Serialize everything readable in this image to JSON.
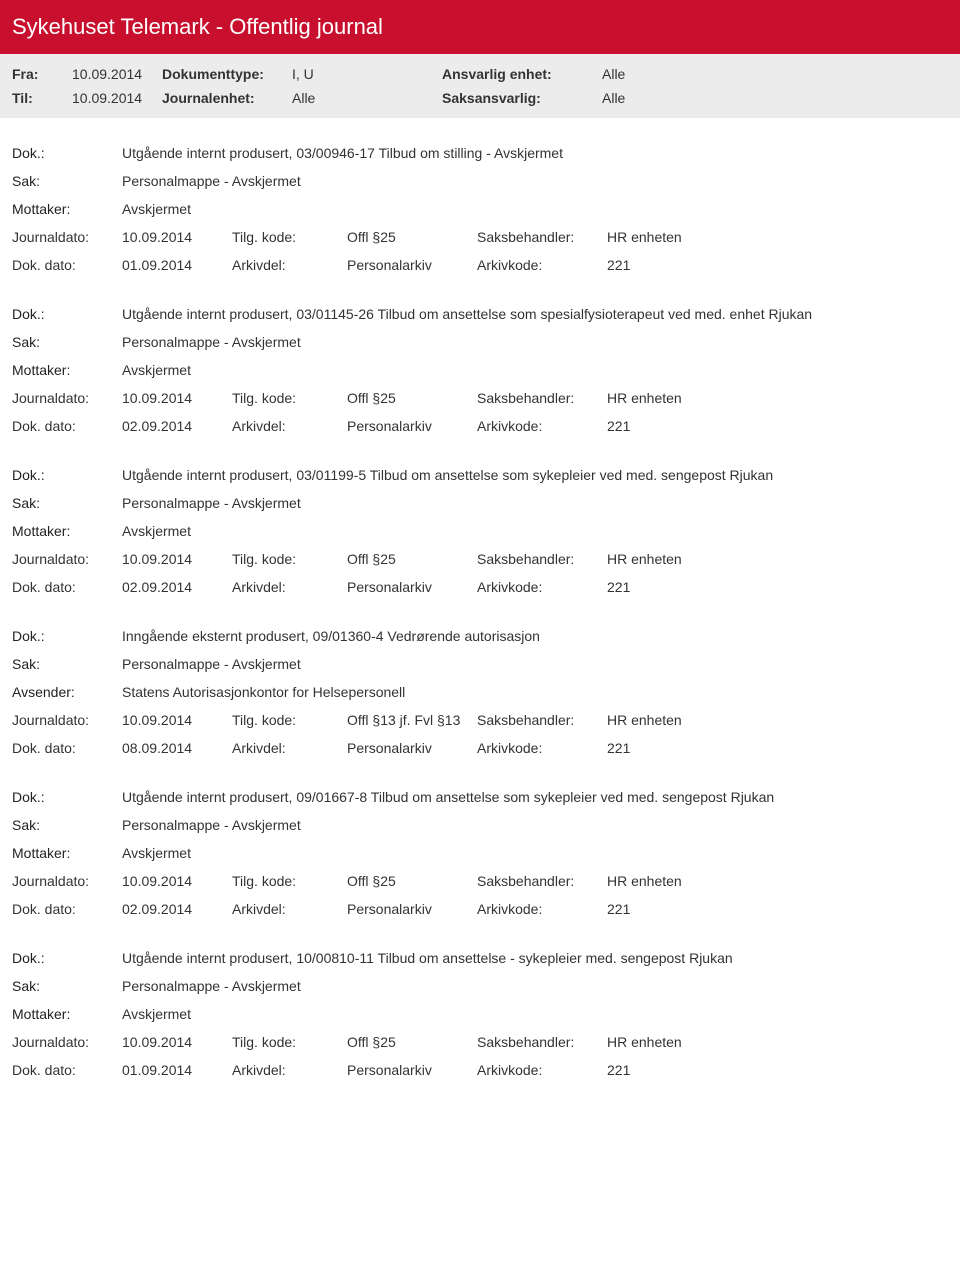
{
  "header": {
    "title": "Sykehuset Telemark - Offentlig journal",
    "filters": {
      "fra_label": "Fra:",
      "fra_value": "10.09.2014",
      "til_label": "Til:",
      "til_value": "10.09.2014",
      "doktype_label": "Dokumenttype:",
      "doktype_value": "I, U",
      "journalenhet_label": "Journalenhet:",
      "journalenhet_value": "Alle",
      "ansvarlig_label": "Ansvarlig enhet:",
      "ansvarlig_value": "Alle",
      "saksansvarlig_label": "Saksansvarlig:",
      "saksansvarlig_value": "Alle"
    }
  },
  "labels": {
    "dok": "Dok.:",
    "sak": "Sak:",
    "mottaker": "Mottaker:",
    "avsender": "Avsender:",
    "journaldato": "Journaldato:",
    "dokdato": "Dok. dato:",
    "tilgkode": "Tilg. kode:",
    "arkivdel": "Arkivdel:",
    "saksbehandler": "Saksbehandler:",
    "arkivkode": "Arkivkode:"
  },
  "entries": [
    {
      "dok": "Utgående internt produsert, 03/00946-17 Tilbud om stilling - Avskjermet",
      "sak": "Personalmappe - Avskjermet",
      "party_label": "Mottaker:",
      "party_value": "Avskjermet",
      "journaldato": "10.09.2014",
      "dokdato": "01.09.2014",
      "tilgkode": "Offl §25",
      "arkivdel": "Personalarkiv",
      "saksbehandler": "HR enheten",
      "arkivkode": "221"
    },
    {
      "dok": "Utgående internt produsert, 03/01145-26 Tilbud om ansettelse som spesialfysioterapeut ved med. enhet Rjukan",
      "sak": "Personalmappe - Avskjermet",
      "party_label": "Mottaker:",
      "party_value": "Avskjermet",
      "journaldato": "10.09.2014",
      "dokdato": "02.09.2014",
      "tilgkode": "Offl §25",
      "arkivdel": "Personalarkiv",
      "saksbehandler": "HR enheten",
      "arkivkode": "221"
    },
    {
      "dok": "Utgående internt produsert, 03/01199-5 Tilbud om ansettelse som sykepleier ved med. sengepost Rjukan",
      "sak": "Personalmappe - Avskjermet",
      "party_label": "Mottaker:",
      "party_value": "Avskjermet",
      "journaldato": "10.09.2014",
      "dokdato": "02.09.2014",
      "tilgkode": "Offl §25",
      "arkivdel": "Personalarkiv",
      "saksbehandler": "HR enheten",
      "arkivkode": "221"
    },
    {
      "dok": "Inngående eksternt produsert, 09/01360-4 Vedrørende autorisasjon",
      "sak": "Personalmappe - Avskjermet",
      "party_label": "Avsender:",
      "party_value": "Statens Autorisasjonkontor for Helsepersonell",
      "journaldato": "10.09.2014",
      "dokdato": "08.09.2014",
      "tilgkode": "Offl §13 jf. Fvl §13",
      "arkivdel": "Personalarkiv",
      "saksbehandler": "HR enheten",
      "arkivkode": "221"
    },
    {
      "dok": "Utgående internt produsert, 09/01667-8 Tilbud om ansettelse som sykepleier ved med. sengepost Rjukan",
      "sak": "Personalmappe - Avskjermet",
      "party_label": "Mottaker:",
      "party_value": "Avskjermet",
      "journaldato": "10.09.2014",
      "dokdato": "02.09.2014",
      "tilgkode": "Offl §25",
      "arkivdel": "Personalarkiv",
      "saksbehandler": "HR enheten",
      "arkivkode": "221"
    },
    {
      "dok": "Utgående internt produsert, 10/00810-11 Tilbud om ansettelse - sykepleier med. sengepost Rjukan",
      "sak": "Personalmappe - Avskjermet",
      "party_label": "Mottaker:",
      "party_value": "Avskjermet",
      "journaldato": "10.09.2014",
      "dokdato": "01.09.2014",
      "tilgkode": "Offl §25",
      "arkivdel": "Personalarkiv",
      "saksbehandler": "HR enheten",
      "arkivkode": "221"
    }
  ]
}
